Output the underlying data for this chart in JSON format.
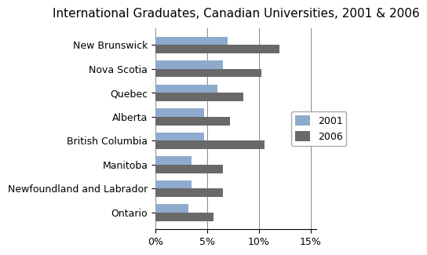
{
  "title": "International Graduates, Canadian Universities, 2001 & 2006",
  "categories": [
    "New Brunswick",
    "Nova Scotia",
    "Quebec",
    "Alberta",
    "British Columbia",
    "Manitoba",
    "Newfoundland and Labrador",
    "Ontario"
  ],
  "values_2001": [
    0.07,
    0.065,
    0.06,
    0.047,
    0.047,
    0.035,
    0.035,
    0.032
  ],
  "values_2006": [
    0.12,
    0.102,
    0.085,
    0.072,
    0.105,
    0.065,
    0.065,
    0.056
  ],
  "color_2001": "#8eaacc",
  "color_2006": "#696969",
  "xlim": [
    0,
    0.155
  ],
  "xticks": [
    0,
    0.05,
    0.1,
    0.15
  ],
  "xticklabels": [
    "0%",
    "5%",
    "10%",
    "15%"
  ],
  "legend_labels": [
    "2001",
    "2006"
  ],
  "background_color": "#ffffff",
  "title_fontsize": 11,
  "tick_fontsize": 9,
  "bar_height": 0.35
}
